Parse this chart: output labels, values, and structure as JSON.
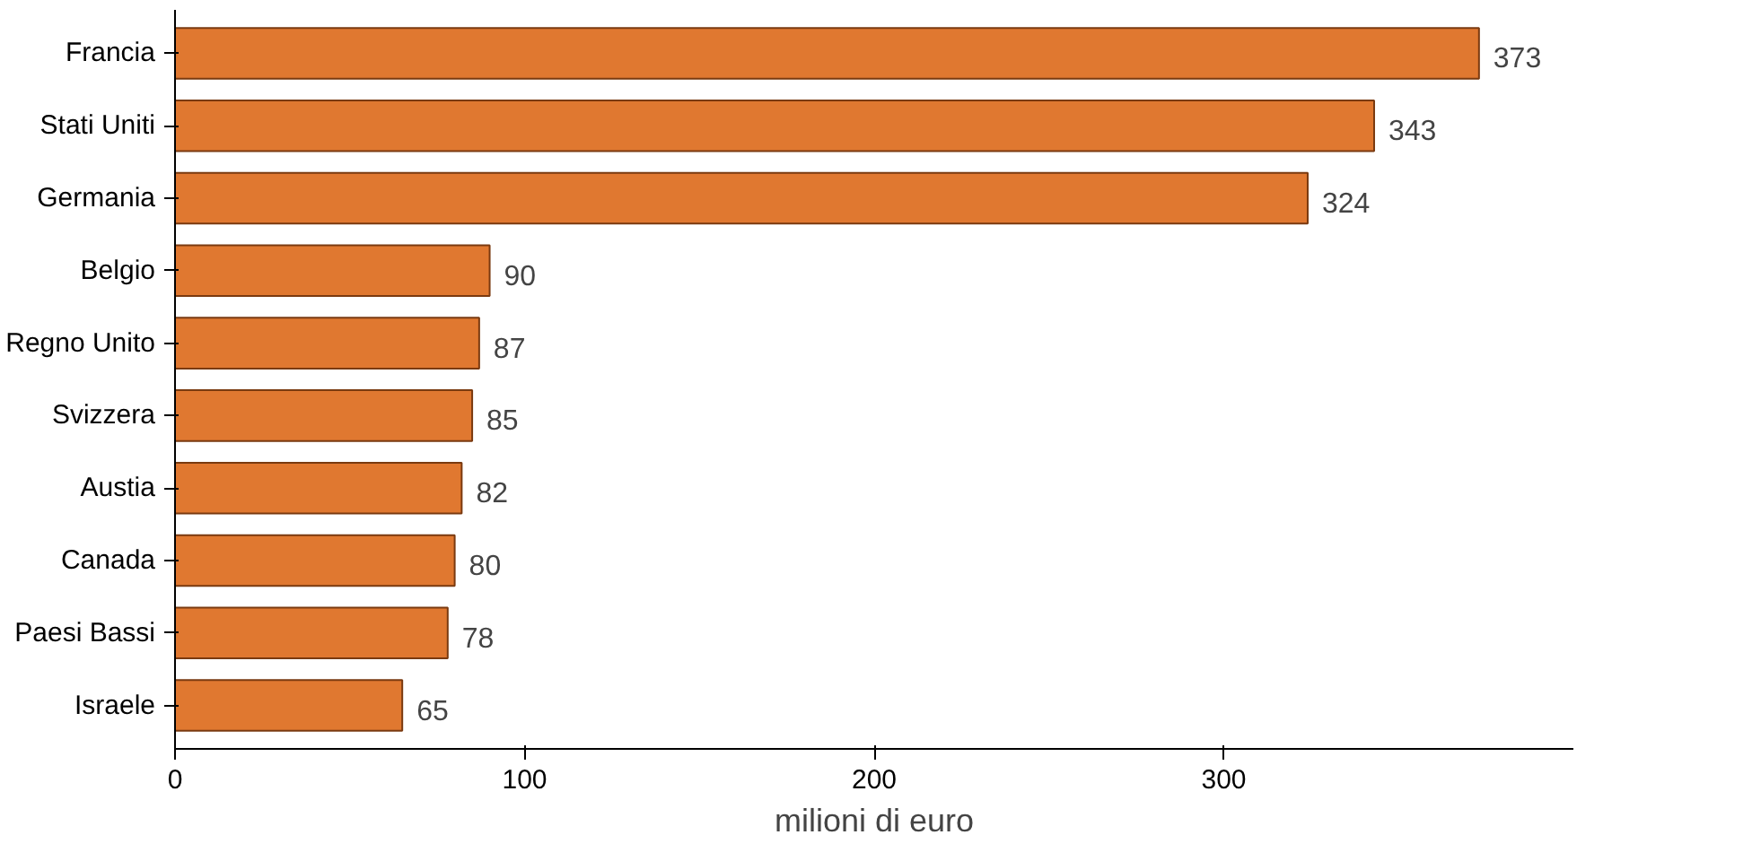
{
  "chart_data": {
    "type": "bar",
    "orientation": "horizontal",
    "xlabel": "milioni di euro",
    "categories": [
      "Francia",
      "Stati Uniti",
      "Germania",
      "Belgio",
      "Regno Unito",
      "Svizzera",
      "Austia",
      "Canada",
      "Paesi Bassi",
      "Israele"
    ],
    "values": [
      373,
      343,
      324,
      90,
      87,
      85,
      82,
      80,
      78,
      65
    ],
    "color": "#e07830",
    "xlim": [
      0,
      400
    ],
    "xticks": [
      0,
      100,
      200,
      300
    ],
    "data_labels": true,
    "grid": false
  }
}
